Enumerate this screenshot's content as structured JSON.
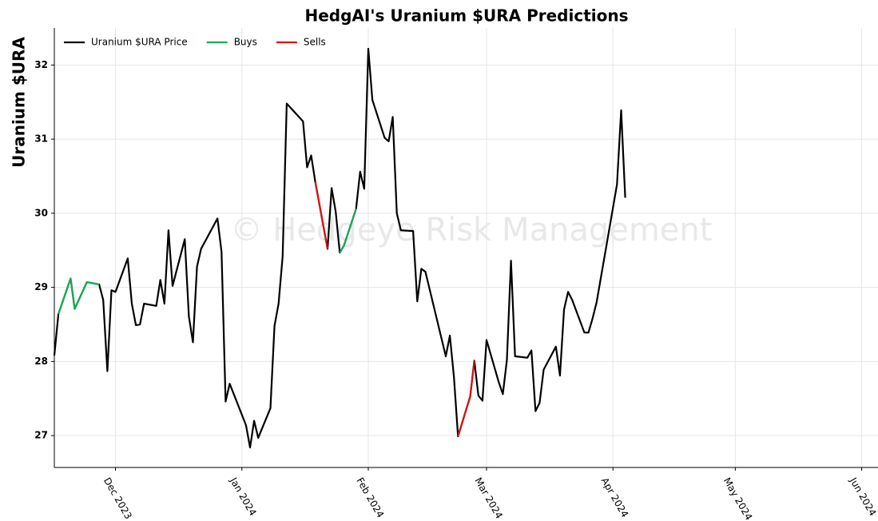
{
  "chart_data": {
    "type": "line",
    "title": "HedgAI's Uranium $URA Predictions",
    "ylabel": "Uranium $URA",
    "watermark": "© Hedgeye Risk Management",
    "legend": "upper left",
    "grid": true,
    "xlim": [
      "2023-11-16",
      "2024-06-05"
    ],
    "ylim": [
      26.57,
      32.5
    ],
    "yticks": [
      27,
      28,
      29,
      30,
      31,
      32
    ],
    "xticks": [
      {
        "value": "2023-12-01",
        "label": "Dec 2023"
      },
      {
        "value": "2024-01-01",
        "label": "Jan 2024"
      },
      {
        "value": "2024-02-01",
        "label": "Feb 2024"
      },
      {
        "value": "2024-03-01",
        "label": "Mar 2024"
      },
      {
        "value": "2024-04-01",
        "label": "Apr 2024"
      },
      {
        "value": "2024-05-01",
        "label": "May 2024"
      },
      {
        "value": "2024-06-01",
        "label": "Jun 2024"
      }
    ],
    "x": [
      "2023-11-16",
      "2023-11-17",
      "2023-11-20",
      "2023-11-21",
      "2023-11-24",
      "2023-11-27",
      "2023-11-28",
      "2023-11-29",
      "2023-11-30",
      "2023-12-01",
      "2023-12-04",
      "2023-12-05",
      "2023-12-06",
      "2023-12-07",
      "2023-12-08",
      "2023-12-11",
      "2023-12-12",
      "2023-12-13",
      "2023-12-14",
      "2023-12-15",
      "2023-12-18",
      "2023-12-19",
      "2023-12-20",
      "2023-12-21",
      "2023-12-22",
      "2023-12-26",
      "2023-12-27",
      "2023-12-28",
      "2023-12-29",
      "2024-01-02",
      "2024-01-03",
      "2024-01-04",
      "2024-01-05",
      "2024-01-08",
      "2024-01-09",
      "2024-01-10",
      "2024-01-11",
      "2024-01-12",
      "2024-01-16",
      "2024-01-17",
      "2024-01-18",
      "2024-01-19",
      "2024-01-22",
      "2024-01-23",
      "2024-01-24",
      "2024-01-25",
      "2024-01-26",
      "2024-01-29",
      "2024-01-30",
      "2024-01-31",
      "2024-02-01",
      "2024-02-02",
      "2024-02-05",
      "2024-02-06",
      "2024-02-07",
      "2024-02-08",
      "2024-02-09",
      "2024-02-12",
      "2024-02-13",
      "2024-02-14",
      "2024-02-15",
      "2024-02-20",
      "2024-02-21",
      "2024-02-22",
      "2024-02-23",
      "2024-02-26",
      "2024-02-27",
      "2024-02-28",
      "2024-02-29",
      "2024-03-01",
      "2024-03-04",
      "2024-03-05",
      "2024-03-06",
      "2024-03-07",
      "2024-03-08",
      "2024-03-11",
      "2024-03-12",
      "2024-03-13",
      "2024-03-14",
      "2024-03-15",
      "2024-03-18",
      "2024-03-19",
      "2024-03-20",
      "2024-03-21",
      "2024-03-22",
      "2024-03-25",
      "2024-03-26",
      "2024-03-27",
      "2024-03-28",
      "2024-04-01",
      "2024-04-02",
      "2024-04-03",
      "2024-04-04"
    ],
    "series": [
      {
        "name": "Uranium $URA Price",
        "color": "#000000",
        "values": [
          28.08,
          28.64,
          29.12,
          28.71,
          29.07,
          29.04,
          28.83,
          27.87,
          28.96,
          28.94,
          29.39,
          28.78,
          28.49,
          28.5,
          28.78,
          28.75,
          29.1,
          28.78,
          29.77,
          29.02,
          29.65,
          28.61,
          28.26,
          29.28,
          29.52,
          29.93,
          29.48,
          27.46,
          27.7,
          27.14,
          26.84,
          27.2,
          26.97,
          27.37,
          28.48,
          28.78,
          29.42,
          31.48,
          31.24,
          30.62,
          30.78,
          30.42,
          29.52,
          30.34,
          30.02,
          29.47,
          29.56,
          30.06,
          30.56,
          30.33,
          32.22,
          31.53,
          31.02,
          30.97,
          31.3,
          30.0,
          29.77,
          29.76,
          28.81,
          29.25,
          29.21,
          28.07,
          28.35,
          27.79,
          26.99,
          27.53,
          28.01,
          27.54,
          27.47,
          28.29,
          27.72,
          27.56,
          28.02,
          29.36,
          28.07,
          28.05,
          28.15,
          27.33,
          27.44,
          27.89,
          28.2,
          27.81,
          28.7,
          28.94,
          28.83,
          28.39,
          28.39,
          28.58,
          28.8,
          30.07,
          30.39,
          31.39,
          30.21
        ]
      },
      {
        "name": "Buys",
        "color": "#1aaa55",
        "values": [
          null,
          28.64,
          29.12,
          28.71,
          29.07,
          29.04,
          null,
          null,
          null,
          null,
          null,
          null,
          null,
          null,
          null,
          null,
          null,
          null,
          null,
          null,
          null,
          null,
          null,
          null,
          null,
          null,
          null,
          null,
          null,
          null,
          null,
          null,
          null,
          null,
          null,
          null,
          null,
          null,
          null,
          null,
          null,
          null,
          null,
          null,
          null,
          29.47,
          29.56,
          30.06,
          null,
          null,
          null,
          null,
          null,
          null,
          null,
          null,
          null,
          null,
          null,
          null,
          null,
          null,
          null,
          null,
          null,
          null,
          null,
          null,
          null,
          null,
          null,
          null,
          null,
          null,
          null,
          null,
          null,
          null,
          null,
          null,
          null,
          null,
          null,
          null,
          null,
          null,
          null,
          null,
          null,
          null,
          null,
          null,
          null
        ]
      },
      {
        "name": "Sells",
        "color": "#dd1111",
        "values": [
          null,
          null,
          null,
          null,
          null,
          null,
          null,
          null,
          null,
          null,
          null,
          null,
          null,
          null,
          null,
          null,
          null,
          null,
          null,
          null,
          null,
          null,
          null,
          null,
          null,
          null,
          null,
          null,
          null,
          null,
          null,
          null,
          null,
          null,
          null,
          null,
          null,
          null,
          null,
          null,
          null,
          30.42,
          29.52,
          null,
          null,
          null,
          null,
          null,
          null,
          null,
          null,
          null,
          null,
          null,
          null,
          null,
          null,
          null,
          null,
          null,
          null,
          null,
          null,
          null,
          26.99,
          27.53,
          28.01,
          null,
          null,
          null,
          null,
          null,
          null,
          null,
          null,
          null,
          null,
          null,
          null,
          null,
          null,
          null,
          null,
          null,
          null,
          null,
          null,
          null,
          null,
          null,
          null,
          null,
          null
        ]
      }
    ]
  }
}
